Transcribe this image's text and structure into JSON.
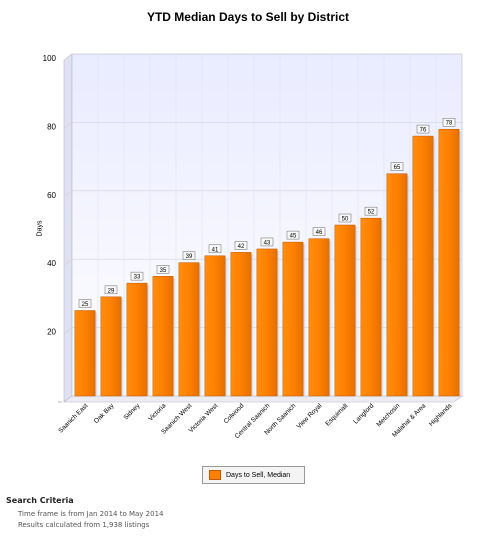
{
  "chart_data": {
    "type": "bar",
    "title": "YTD Median Days to Sell by District",
    "xlabel": "",
    "ylabel": "Days",
    "ylim": [
      0,
      100
    ],
    "yticks": [
      20,
      40,
      60,
      80,
      100
    ],
    "grid": true,
    "legend_position": "bottom",
    "categories": [
      "Saanich East",
      "Oak Bay",
      "Sidney",
      "Victoria",
      "Saanich West",
      "Victoria West",
      "Colwood",
      "Central Saanich",
      "North Saanich",
      "View Royal",
      "Esquimalt",
      "Langford",
      "Metchosin",
      "Malahat & Area",
      "Highlands"
    ],
    "series": [
      {
        "name": "Days to Sell, Median",
        "values": [
          25,
          29,
          33,
          35,
          39,
          41,
          42,
          43,
          45,
          46,
          50,
          52,
          65,
          76,
          78
        ]
      }
    ],
    "colors": {
      "bar": "#ff8000",
      "bar_edge": "#c05a00",
      "plot_bg_top": "#e9ebff",
      "plot_bg_bottom": "#ffffff",
      "grid": "#d0d0d8"
    }
  },
  "criteria": {
    "title": "Search Criteria",
    "timeframe": "Time frame is from Jan 2014 to May 2014",
    "results": "Results calculated from 1,938 listings"
  }
}
